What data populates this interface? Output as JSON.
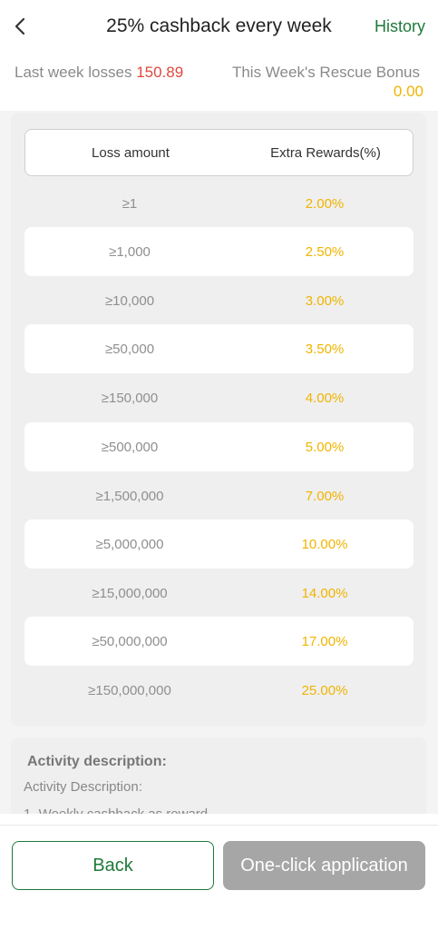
{
  "header": {
    "title": "25% cashback every week",
    "history_label": "History",
    "back_icon": "chevron-left-icon"
  },
  "summary": {
    "losses_label": "Last week losses",
    "losses_value": "150.89",
    "bonus_label": "This Week's Rescue Bonus",
    "bonus_value": "0.00"
  },
  "table": {
    "headers": [
      "Loss amount",
      "Extra Rewards(%)"
    ],
    "rows": [
      {
        "loss": "≥1",
        "reward": "2.00%"
      },
      {
        "loss": "≥1,000",
        "reward": "2.50%"
      },
      {
        "loss": "≥10,000",
        "reward": "3.00%"
      },
      {
        "loss": "≥50,000",
        "reward": "3.50%"
      },
      {
        "loss": "≥150,000",
        "reward": "4.00%"
      },
      {
        "loss": "≥500,000",
        "reward": "5.00%"
      },
      {
        "loss": "≥1,500,000",
        "reward": "7.00%"
      },
      {
        "loss": "≥5,000,000",
        "reward": "10.00%"
      },
      {
        "loss": "≥15,000,000",
        "reward": "14.00%"
      },
      {
        "loss": "≥50,000,000",
        "reward": "17.00%"
      },
      {
        "loss": "≥150,000,000",
        "reward": "25.00%"
      }
    ]
  },
  "description": {
    "title": "Activity description:",
    "subtitle": "Activity Description:",
    "first_line": "1. Weekly cashback as reward"
  },
  "footer": {
    "back_label": "Back",
    "apply_label": "One-click application"
  },
  "colors": {
    "accent_green": "#1e7a3a",
    "loss_red": "#e0493e",
    "reward_gold": "#f0b400",
    "disabled_gray": "#a6a6a6"
  }
}
